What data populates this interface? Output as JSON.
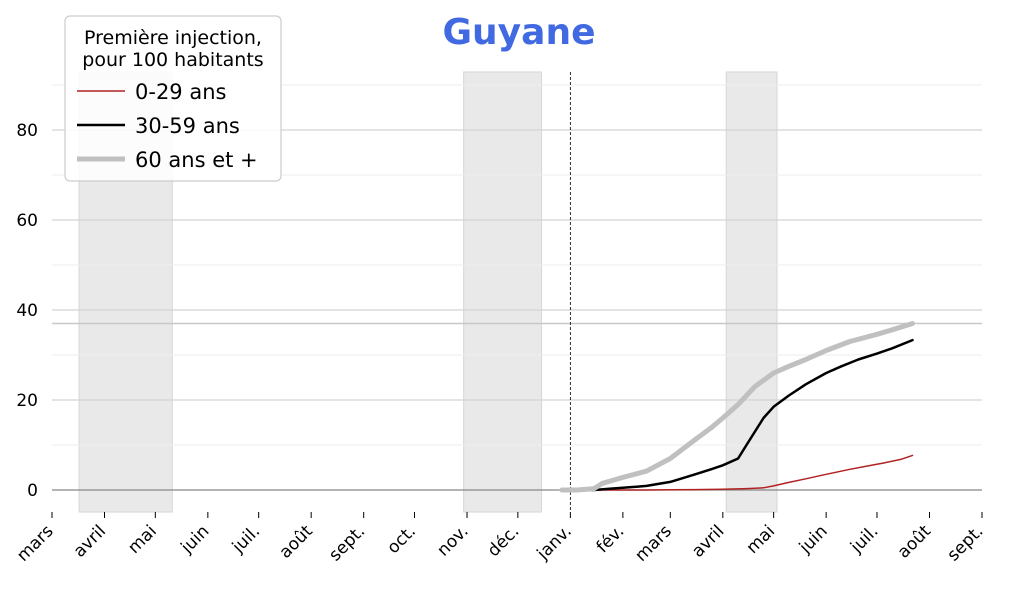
{
  "chart_data": {
    "type": "line",
    "title": "Guyane",
    "title_color": "#4169e1",
    "legend": {
      "title_lines": [
        "Première injection,",
        "pour 100 habitants"
      ],
      "placement": "top-left"
    },
    "x_ticks": [
      "mars",
      "avril",
      "mai",
      "juin",
      "juil.",
      "août",
      "sept.",
      "oct.",
      "nov.",
      "déc.",
      "janv.",
      "fév.",
      "mars",
      "avril",
      "mai",
      "juin",
      "juil.",
      "août",
      "sept."
    ],
    "y_ticks": [
      "0",
      "20",
      "40",
      "60",
      "80"
    ],
    "ylim": [
      -5,
      93
    ],
    "reference_line_y": 37.0,
    "shaded_periods": [
      [
        "2020-03-17",
        "2020-05-11"
      ],
      [
        "2020-10-30",
        "2020-12-15"
      ],
      [
        "2021-04-03",
        "2021-05-03"
      ]
    ],
    "vaccination_start": "2021-01-01",
    "grid": true,
    "series": [
      {
        "name": "0-29 ans",
        "color": "#b22222",
        "width": 1.5,
        "x": [
          "2020-12-27",
          "2021-01-15",
          "2021-02-01",
          "2021-02-15",
          "2021-03-01",
          "2021-03-15",
          "2021-04-01",
          "2021-04-15",
          "2021-04-25",
          "2021-05-01",
          "2021-05-10",
          "2021-05-20",
          "2021-06-01",
          "2021-06-15",
          "2021-06-25",
          "2021-07-05",
          "2021-07-15",
          "2021-07-22"
        ],
        "y": [
          0,
          0,
          0,
          0,
          0.05,
          0.1,
          0.15,
          0.3,
          0.5,
          0.9,
          1.7,
          2.5,
          3.5,
          4.6,
          5.3,
          6.0,
          6.8,
          7.7
        ]
      },
      {
        "name": "30-59 ans",
        "color": "#000000",
        "width": 2.5,
        "x": [
          "2020-12-27",
          "2021-01-15",
          "2021-01-25",
          "2021-02-01",
          "2021-02-15",
          "2021-03-01",
          "2021-03-15",
          "2021-03-25",
          "2021-04-01",
          "2021-04-10",
          "2021-04-15",
          "2021-04-20",
          "2021-04-25",
          "2021-05-01",
          "2021-05-10",
          "2021-05-20",
          "2021-06-01",
          "2021-06-10",
          "2021-06-20",
          "2021-07-01",
          "2021-07-10",
          "2021-07-22"
        ],
        "y": [
          0,
          0,
          0.3,
          0.5,
          0.9,
          1.8,
          3.4,
          4.6,
          5.5,
          7.0,
          10.0,
          13.0,
          16.0,
          18.5,
          21.0,
          23.5,
          26.0,
          27.5,
          29.0,
          30.3,
          31.5,
          33.3
        ]
      },
      {
        "name": "60 ans et +",
        "color": "#c0c0c0",
        "width": 5,
        "x": [
          "2020-12-27",
          "2021-01-05",
          "2021-01-15",
          "2021-01-20",
          "2021-02-01",
          "2021-02-15",
          "2021-03-01",
          "2021-03-15",
          "2021-03-25",
          "2021-04-01",
          "2021-04-10",
          "2021-04-20",
          "2021-05-01",
          "2021-05-10",
          "2021-05-20",
          "2021-06-01",
          "2021-06-15",
          "2021-07-01",
          "2021-07-10",
          "2021-07-22"
        ],
        "y": [
          0,
          0,
          0.3,
          1.5,
          2.8,
          4.2,
          7.0,
          11.0,
          13.8,
          16.0,
          19.0,
          23.0,
          26.0,
          27.5,
          29.0,
          31.0,
          33.0,
          34.6,
          35.6,
          37.0
        ]
      }
    ]
  }
}
